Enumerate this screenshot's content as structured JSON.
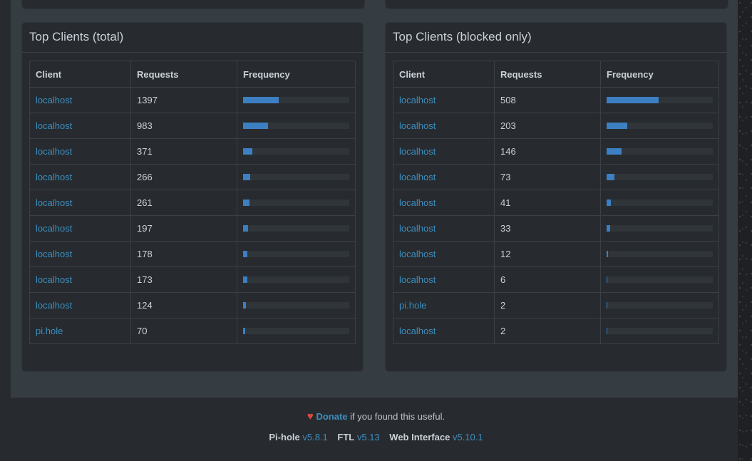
{
  "panels": [
    {
      "title": "Top Clients (total)",
      "headers": [
        "Client",
        "Requests",
        "Frequency"
      ],
      "rows": [
        {
          "client": "localhost",
          "requests": "1397",
          "pct": 33.6
        },
        {
          "client": "localhost",
          "requests": "983",
          "pct": 23.6
        },
        {
          "client": "localhost",
          "requests": "371",
          "pct": 8.9
        },
        {
          "client": "localhost",
          "requests": "266",
          "pct": 6.4
        },
        {
          "client": "localhost",
          "requests": "261",
          "pct": 6.3
        },
        {
          "client": "localhost",
          "requests": "197",
          "pct": 4.7
        },
        {
          "client": "localhost",
          "requests": "178",
          "pct": 4.3
        },
        {
          "client": "localhost",
          "requests": "173",
          "pct": 4.2
        },
        {
          "client": "localhost",
          "requests": "124",
          "pct": 3.0
        },
        {
          "client": "pi.hole",
          "requests": "70",
          "pct": 1.7
        }
      ]
    },
    {
      "title": "Top Clients (blocked only)",
      "headers": [
        "Client",
        "Requests",
        "Frequency"
      ],
      "rows": [
        {
          "client": "localhost",
          "requests": "508",
          "pct": 49.3
        },
        {
          "client": "localhost",
          "requests": "203",
          "pct": 19.7
        },
        {
          "client": "localhost",
          "requests": "146",
          "pct": 14.2
        },
        {
          "client": "localhost",
          "requests": "73",
          "pct": 7.1
        },
        {
          "client": "localhost",
          "requests": "41",
          "pct": 4.0
        },
        {
          "client": "localhost",
          "requests": "33",
          "pct": 3.2
        },
        {
          "client": "localhost",
          "requests": "12",
          "pct": 1.2
        },
        {
          "client": "localhost",
          "requests": "6",
          "pct": 0.6
        },
        {
          "client": "pi.hole",
          "requests": "2",
          "pct": 0.2
        },
        {
          "client": "localhost",
          "requests": "2",
          "pct": 0.2
        }
      ]
    }
  ],
  "footer": {
    "donate_label": "Donate",
    "donate_suffix": " if you found this useful.",
    "pihole_label": "Pi-hole",
    "pihole_version": "v5.8.1",
    "ftl_label": "FTL",
    "ftl_version": "v5.13",
    "web_label": "Web Interface",
    "web_version": "v5.10.1"
  },
  "colors": {
    "bar": "#3c7fc2",
    "link": "#3c8dbc",
    "heart": "#dd4b39"
  },
  "icons": {
    "heart": "heart-icon"
  }
}
